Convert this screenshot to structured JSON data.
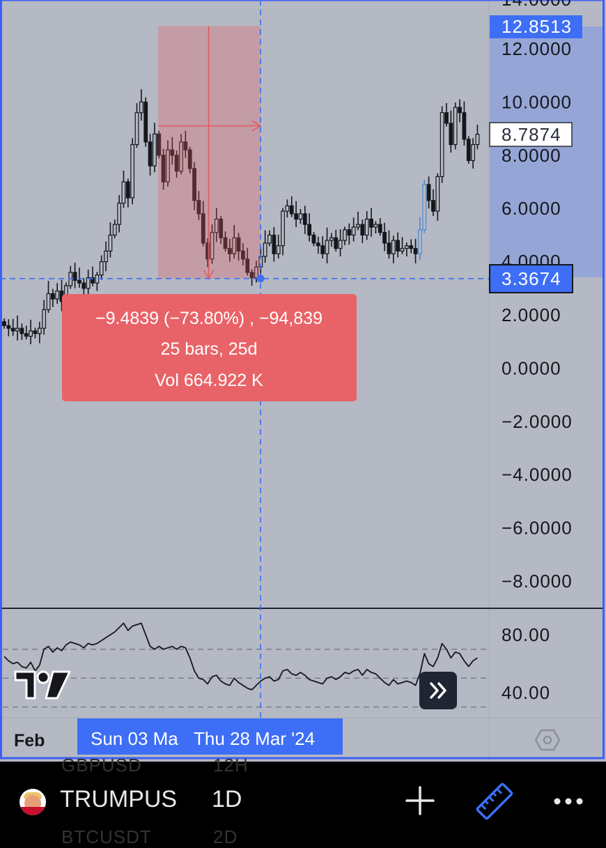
{
  "symbol": "TRUMPUS",
  "interval": "1D",
  "ghost_rows": [
    "GBPUSD",
    "12H",
    "BTCUSDT",
    "2D"
  ],
  "icons": {
    "avatar": "symbol-avatar-icon",
    "plus": "plus-icon",
    "ruler": "ruler-icon",
    "more": "more-dots-icon",
    "forward": "double-chevron-right-icon",
    "logo": "tradingview-logo-icon",
    "settings": "hexagon-settings-icon"
  },
  "colors": {
    "background": "#b5b9c3",
    "crosshair": "#3d6ef5",
    "measure_fill": "#e35a5f",
    "measure_label_bg": "#e86368",
    "price_label_blue": "#3d6ef5"
  },
  "price_axis": {
    "top_label": "12.8513",
    "current_label": "8.7874",
    "cursor_label": "3.3674",
    "partial_top_label": "14.0000",
    "partial_label": "4.0000"
  },
  "time_axis": {
    "left_label": "Feb",
    "range_start_label": "Sun 03 Ma",
    "cursor_label": "Thu 28 Mar '24"
  },
  "measurement": {
    "line1": "−9.4839 (−73.80%) , −94,839",
    "line2": "25 bars, 25d",
    "line3": "Vol 664.922 K",
    "high": 12.8513,
    "low": 3.3674
  },
  "chart_data": [
    {
      "type": "candlestick",
      "y_ticks": [
        "12.0000",
        "10.0000",
        "8.0000",
        "6.0000",
        "2.0000",
        "0.0000",
        "−2.0000",
        "−4.0000",
        "−6.0000",
        "−8.0000"
      ],
      "y_tick_values": [
        12,
        10,
        8,
        6,
        2,
        0,
        -2,
        -4,
        -6,
        -8
      ],
      "ylim": [
        -9,
        14
      ],
      "close": [
        1.6,
        1.5,
        1.4,
        1.5,
        1.3,
        1.2,
        1.4,
        1.3,
        1.5,
        2.2,
        2.8,
        2.6,
        2.9,
        2.5,
        3.1,
        3.6,
        3.3,
        3.2,
        3.0,
        3.4,
        3.2,
        3.5,
        4.0,
        4.4,
        5.0,
        5.4,
        6.2,
        7.0,
        6.4,
        8.4,
        9.6,
        10.0,
        8.5,
        7.6,
        8.8,
        8.0,
        7.0,
        8.2,
        8.0,
        7.4,
        8.5,
        8.2,
        7.5,
        6.3,
        5.8,
        4.7,
        4.1,
        5.1,
        5.6,
        4.9,
        4.5,
        4.3,
        4.9,
        4.4,
        4.1,
        3.6,
        3.4,
        3.8,
        4.2,
        4.7,
        5.0,
        4.3,
        4.6,
        5.9,
        6.1,
        5.8,
        5.6,
        5.8,
        5.4,
        5.0,
        4.7,
        4.6,
        4.3,
        4.8,
        4.9,
        4.5,
        4.8,
        5.2,
        5.0,
        5.3,
        5.4,
        5.0,
        5.6,
        5.3,
        5.4,
        5.1,
        4.7,
        4.3,
        4.8,
        4.4,
        4.5,
        4.6,
        4.5,
        4.3,
        5.2,
        6.9,
        6.3,
        5.9,
        7.2,
        9.6,
        9.2,
        8.4,
        9.8,
        9.6,
        8.6,
        7.8,
        8.4,
        8.7874
      ]
    },
    {
      "type": "line",
      "y_ticks": [
        "80.00",
        "40.00"
      ],
      "y_tick_values": [
        80,
        40
      ],
      "ylim": [
        30,
        95
      ],
      "values": [
        65,
        62,
        60,
        61,
        58,
        57,
        61,
        55,
        59,
        70,
        72,
        68,
        71,
        69,
        73,
        75,
        74,
        73,
        71,
        74,
        73,
        74,
        76,
        78,
        80,
        82,
        85,
        88,
        83,
        86,
        87,
        88,
        80,
        72,
        70,
        72,
        70,
        71,
        72,
        70,
        72,
        71,
        64,
        55,
        50,
        49,
        46,
        51,
        52,
        48,
        46,
        45,
        50,
        47,
        45,
        43,
        42,
        45,
        48,
        50,
        51,
        48,
        49,
        55,
        56,
        53,
        52,
        54,
        52,
        49,
        48,
        47,
        46,
        50,
        51,
        49,
        51,
        54,
        53,
        55,
        56,
        52,
        56,
        54,
        53,
        50,
        47,
        45,
        49,
        46,
        47,
        48,
        47,
        45,
        53,
        67,
        60,
        58,
        64,
        74,
        70,
        64,
        68,
        67,
        62,
        58,
        62,
        64
      ]
    }
  ]
}
